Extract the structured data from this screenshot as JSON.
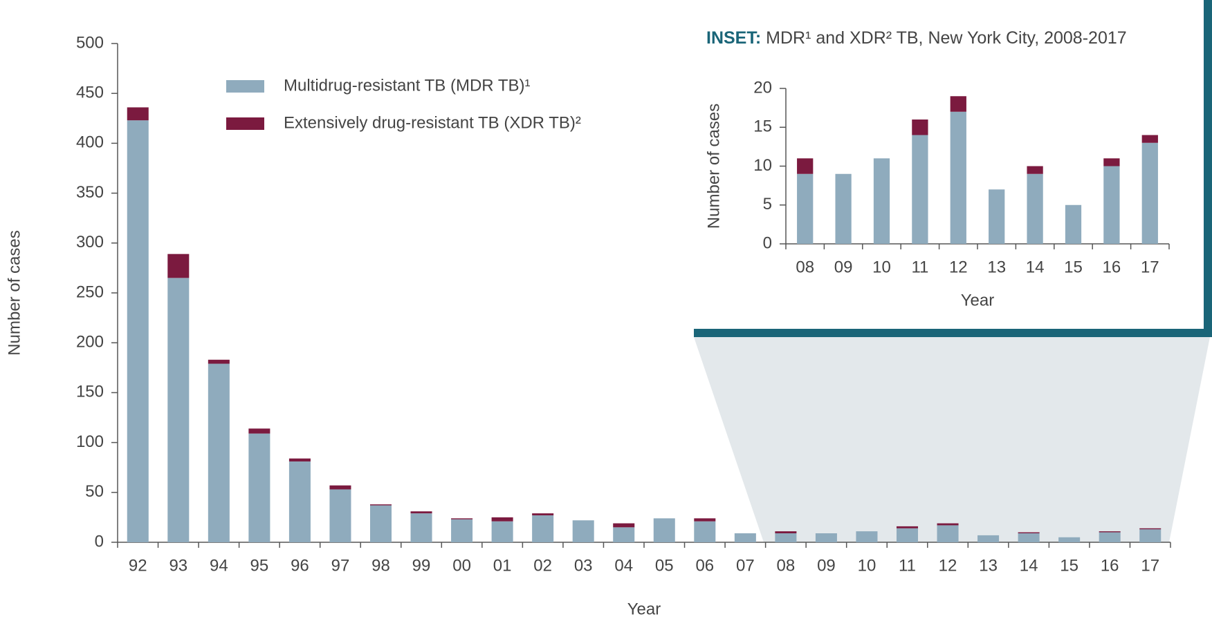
{
  "chart_data": [
    {
      "type": "bar",
      "stacked": true,
      "x_label": "Year",
      "y_label": "Number of cases",
      "categories": [
        "92",
        "93",
        "94",
        "95",
        "96",
        "97",
        "98",
        "99",
        "00",
        "01",
        "02",
        "03",
        "04",
        "05",
        "06",
        "07",
        "08",
        "09",
        "10",
        "11",
        "12",
        "13",
        "14",
        "15",
        "16",
        "17"
      ],
      "series": [
        {
          "name": "Multidrug-resistant TB (MDR TB)¹",
          "color": "#8fabbd",
          "values": [
            423,
            265,
            179,
            109,
            81,
            53,
            37,
            29,
            23,
            21,
            27,
            22,
            15,
            24,
            21,
            9,
            9,
            9,
            11,
            14,
            17,
            7,
            9,
            5,
            10,
            13
          ]
        },
        {
          "name": "Extensively drug-resistant TB (XDR TB)²",
          "color": "#7b1a3f",
          "values": [
            13,
            24,
            4,
            5,
            3,
            4,
            1,
            2,
            1,
            4,
            2,
            0,
            4,
            0,
            3,
            0,
            2,
            0,
            0,
            2,
            2,
            0,
            1,
            0,
            1,
            1
          ]
        }
      ],
      "ylim": [
        0,
        500
      ],
      "yticks": [
        0,
        50,
        100,
        150,
        200,
        250,
        300,
        350,
        400,
        450,
        500
      ]
    },
    {
      "type": "bar",
      "stacked": true,
      "title_label": "INSET:",
      "title": "MDR¹ and XDR² TB, New York City, 2008-2017",
      "x_label": "Year",
      "y_label": "Number of cases",
      "categories": [
        "08",
        "09",
        "10",
        "11",
        "12",
        "13",
        "14",
        "15",
        "16",
        "17"
      ],
      "series": [
        {
          "name": "MDR TB",
          "color": "#8fabbd",
          "values": [
            9,
            9,
            11,
            14,
            17,
            7,
            9,
            5,
            10,
            13
          ]
        },
        {
          "name": "XDR TB",
          "color": "#7b1a3f",
          "values": [
            2,
            0,
            0,
            2,
            2,
            0,
            1,
            0,
            1,
            1
          ]
        }
      ],
      "ylim": [
        0,
        20
      ],
      "yticks": [
        0,
        5,
        10,
        15,
        20
      ]
    }
  ]
}
